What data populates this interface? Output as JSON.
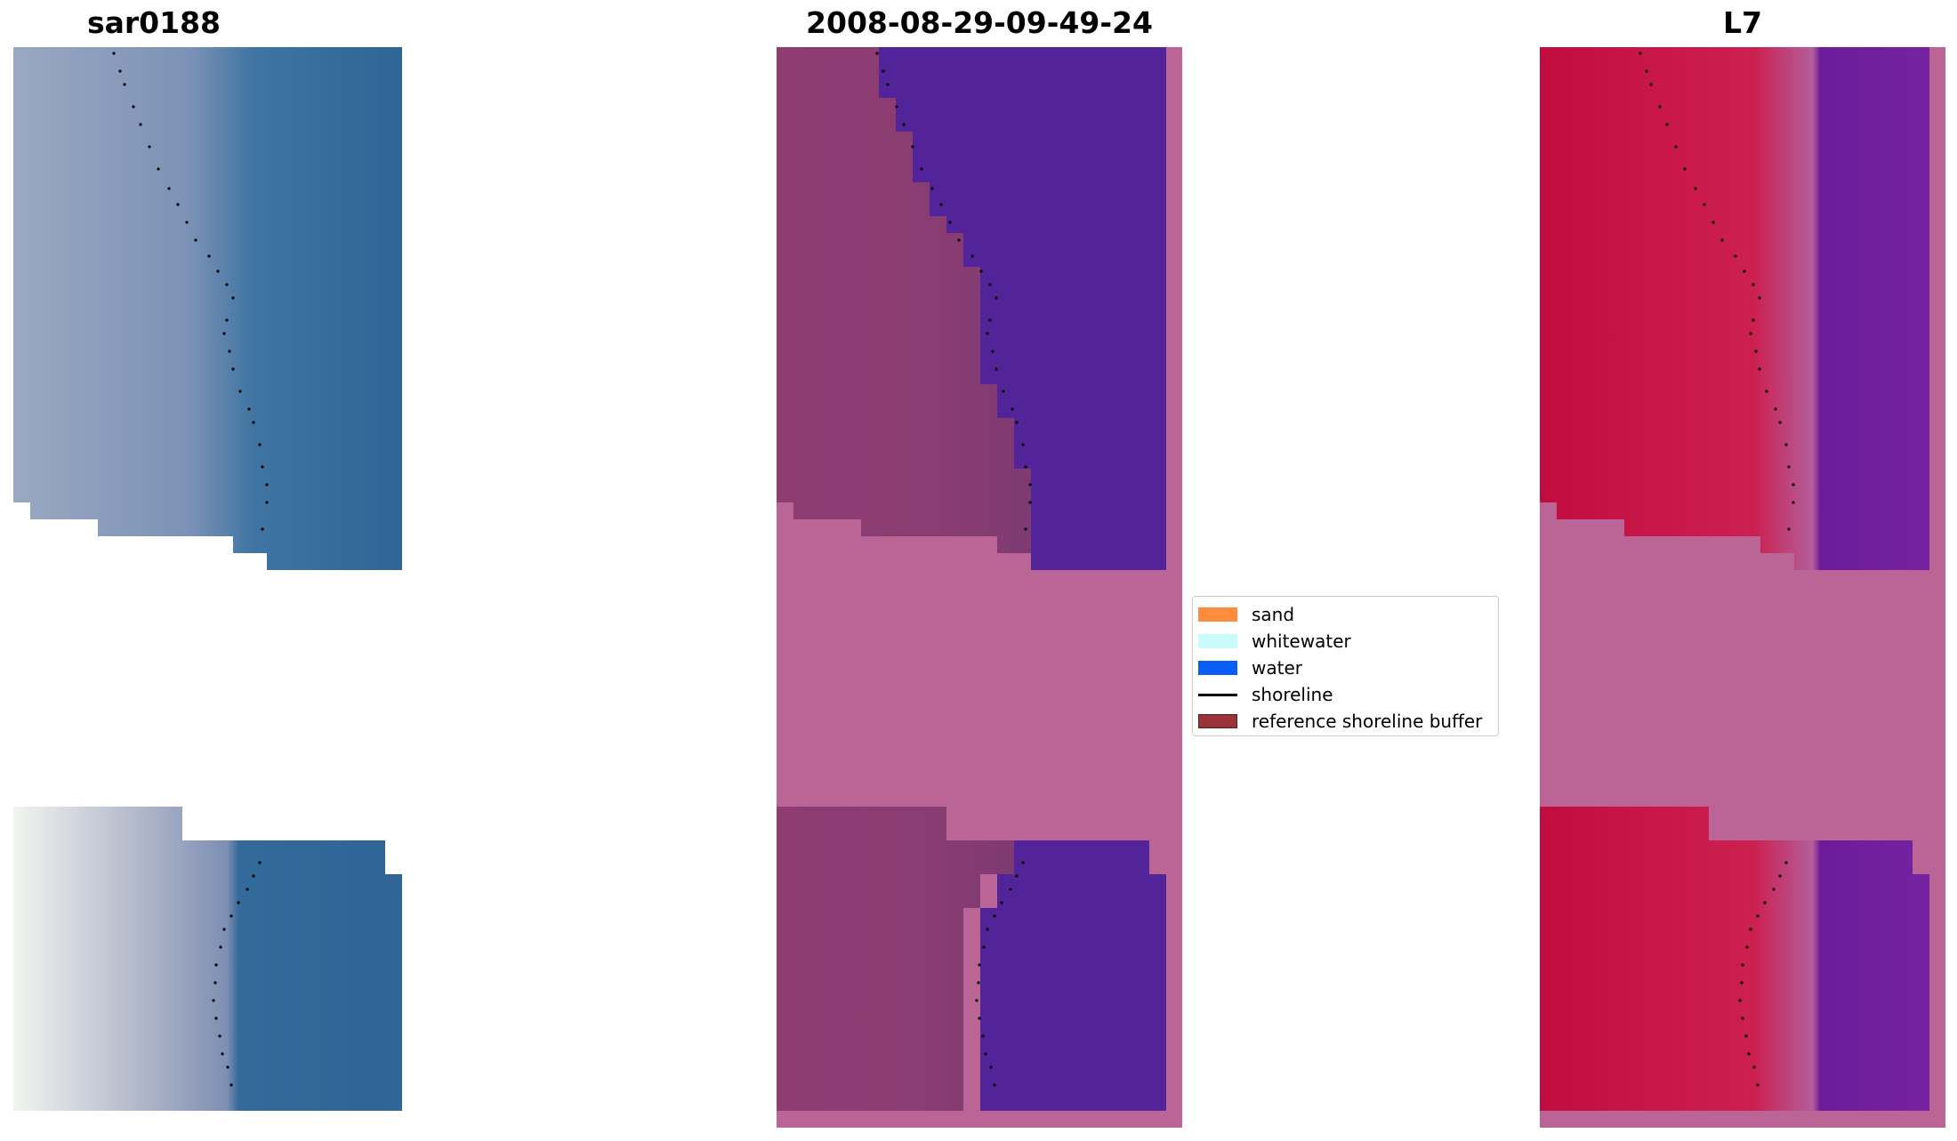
{
  "panels": [
    {
      "title": "sar0188"
    },
    {
      "title": "2008-08-29-09-49-24"
    },
    {
      "title": "L7"
    }
  ],
  "legend": {
    "items": [
      {
        "label": "sand",
        "color": "#fd8c3c",
        "kind": "patch"
      },
      {
        "label": "whitewater",
        "color": "#c8fcfc",
        "kind": "patch"
      },
      {
        "label": "water",
        "color": "#0a5ef5",
        "kind": "patch"
      },
      {
        "label": "shoreline",
        "color": "#000000",
        "kind": "line"
      },
      {
        "label": "reference shoreline buffer",
        "color": "#9a3337",
        "kind": "patch"
      }
    ]
  },
  "colors": {
    "rgb_water": "#2f6a9c",
    "rgb_land": "#8a9dbd",
    "class_background": "#bb6597",
    "class_water": "#53239a",
    "class_land": "#8a3a6e",
    "ndwi_land": "#c41046",
    "ndwi_water": "#6e1a98"
  }
}
